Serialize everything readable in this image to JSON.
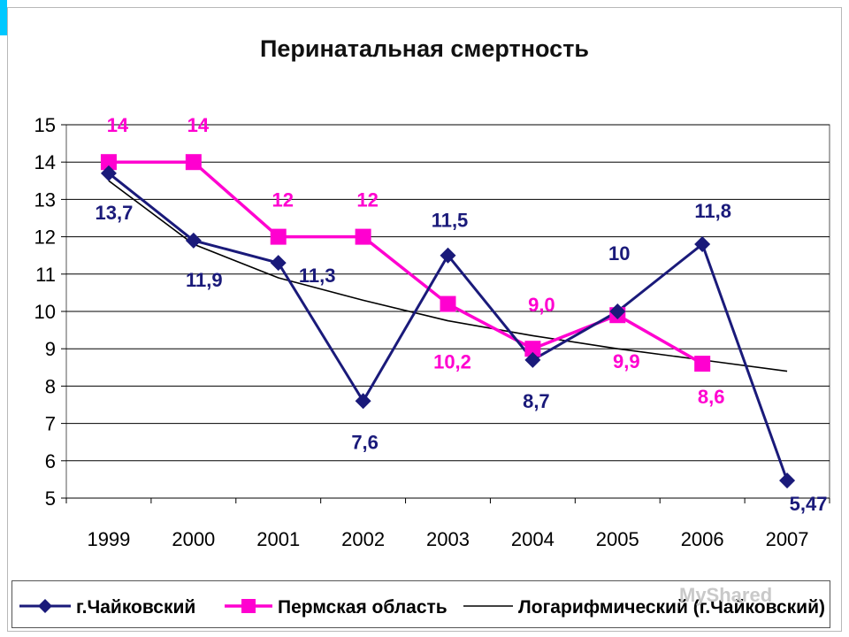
{
  "colors": {
    "chaikovsky": "#1a1a7a",
    "perm": "#ff00d0",
    "trend": "#000000",
    "grid": "#000000"
  },
  "watermark": "MyShared",
  "chart_data": {
    "type": "line",
    "title": "Перинатальная смертность",
    "categories": [
      "1999",
      "2000",
      "2001",
      "2002",
      "2003",
      "2004",
      "2005",
      "2006",
      "2007"
    ],
    "ylim": [
      5,
      15
    ],
    "yticks": [
      5,
      6,
      7,
      8,
      9,
      10,
      11,
      12,
      13,
      14,
      15
    ],
    "grid": true,
    "legend_position": "bottom",
    "series": [
      {
        "name": "г.Чайковский",
        "marker": "diamond",
        "values": [
          13.7,
          11.9,
          11.3,
          7.6,
          11.5,
          8.7,
          10,
          11.8,
          5.47
        ],
        "labels": [
          "13,7",
          "11,9",
          "11,3",
          "7,6",
          "11,5",
          "8,7",
          "10",
          "11,8",
          "5,47"
        ]
      },
      {
        "name": "Пермская область",
        "marker": "square",
        "values": [
          14,
          14,
          12,
          12,
          10.2,
          9.0,
          9.9,
          8.6,
          null
        ],
        "labels": [
          "14",
          "14",
          "12",
          "12",
          "10,2",
          "9,0",
          "9,9",
          "8,6",
          ""
        ]
      },
      {
        "name": "Логарифмический (г.Чайковский)",
        "marker": "none",
        "trendline": "logarithmic",
        "values": [
          13.5,
          11.8,
          10.9,
          10.3,
          9.75,
          9.35,
          9.0,
          8.7,
          8.4
        ]
      }
    ]
  }
}
